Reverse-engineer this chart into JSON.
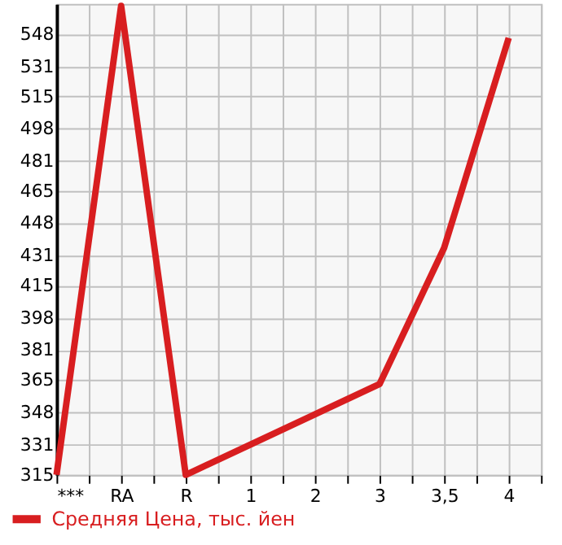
{
  "chart_data": {
    "type": "line",
    "categories": [
      "***",
      "RA",
      "R",
      "1",
      "2",
      "3",
      "3,5",
      "4"
    ],
    "series": [
      {
        "name": "Средняя Цена, тыс. йен",
        "color": "#d81e20",
        "values": [
          315,
          563,
          315,
          331,
          347,
          363,
          435,
          546
        ]
      }
    ],
    "ylim": [
      315,
      564
    ],
    "yticks": [
      315,
      331,
      348,
      365,
      381,
      398,
      415,
      431,
      448,
      465,
      481,
      498,
      515,
      531,
      548
    ],
    "grid": true,
    "legend": "bottom left",
    "marker": "none",
    "line_style": "solid"
  }
}
